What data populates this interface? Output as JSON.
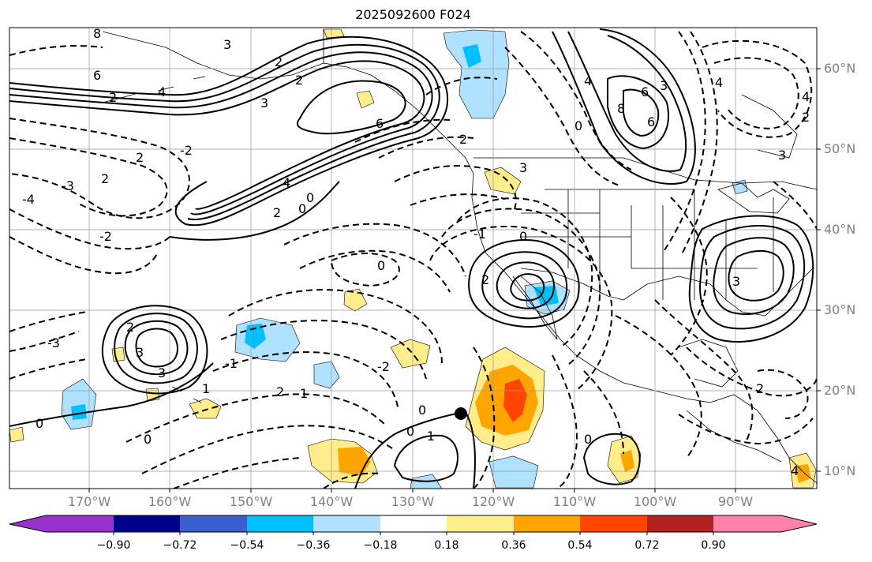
{
  "title": "2025092600 F024",
  "lat_labels": [
    "60°N",
    "50°N",
    "40°N",
    "30°N",
    "20°N",
    "10°N"
  ],
  "lon_labels": [
    "170°W",
    "160°W",
    "150°W",
    "140°W",
    "130°W",
    "120°W",
    "110°W",
    "100°W",
    "90°W"
  ],
  "colorbar": {
    "ticks": [
      "−0.90",
      "−0.72",
      "−0.54",
      "−0.36",
      "−0.18",
      "0.18",
      "0.36",
      "0.54",
      "0.72",
      "0.90"
    ],
    "colors": [
      "#9932cc",
      "#00008b",
      "#3a5fcd",
      "#00bfff",
      "#b0e2ff",
      "#ffffff",
      "#ffec8b",
      "#ffa500",
      "#ff4500",
      "#b22222",
      "#ff82ab"
    ]
  },
  "contour_labels": [
    "8",
    "6",
    "4",
    "2",
    "3",
    "6",
    "2",
    "2",
    "3",
    "4",
    "6",
    "8",
    "6",
    "4",
    "3",
    "0",
    "2",
    "-2",
    "-3",
    "-4",
    "2",
    "4",
    "2",
    "0",
    "0",
    "2",
    "-2",
    "3",
    "0",
    "-1",
    "2",
    "3",
    "4",
    "-3",
    "-1",
    "2",
    "0",
    "2",
    "1",
    "0",
    "1",
    "-2",
    "0",
    "3",
    "2",
    "0",
    "-1",
    "0",
    "3",
    "2",
    "3",
    "4",
    "0"
  ],
  "marker": "storm-center"
}
